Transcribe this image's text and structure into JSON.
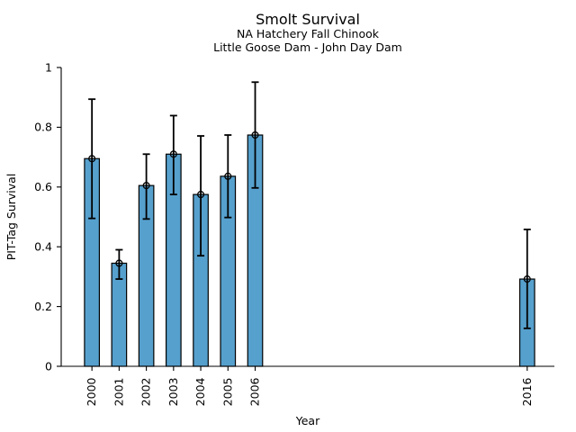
{
  "chart_data": {
    "type": "bar",
    "title": "Smolt Survival",
    "subtitle": [
      "NA Hatchery Fall Chinook",
      "Little Goose Dam - John Day Dam"
    ],
    "xlabel": "Year",
    "ylabel": "PIT-Tag Survival",
    "categories": [
      "2000",
      "2001",
      "2002",
      "2003",
      "2004",
      "2005",
      "2006",
      "2016"
    ],
    "x": [
      2000,
      2001,
      2002,
      2003,
      2004,
      2005,
      2006,
      2016
    ],
    "values": [
      0.695,
      0.345,
      0.605,
      0.71,
      0.575,
      0.636,
      0.774,
      0.292
    ],
    "error_low": [
      0.495,
      0.292,
      0.493,
      0.575,
      0.37,
      0.498,
      0.597,
      0.127
    ],
    "error_high": [
      0.894,
      0.39,
      0.71,
      0.839,
      0.771,
      0.774,
      0.951,
      0.458
    ],
    "xlim": [
      1998.87,
      2017.0
    ],
    "ylim": [
      0,
      1
    ],
    "yticks": [
      0,
      0.2,
      0.4,
      0.6,
      0.8,
      1
    ],
    "ytick_labels": [
      "0",
      "0.2",
      "0.4",
      "0.6",
      "0.8",
      "1"
    ],
    "grid": false,
    "legend": false,
    "marker": "open-circle",
    "bar_color": "#56A0CD",
    "bar_edge_color": "#000000",
    "error_color": "#000000"
  }
}
